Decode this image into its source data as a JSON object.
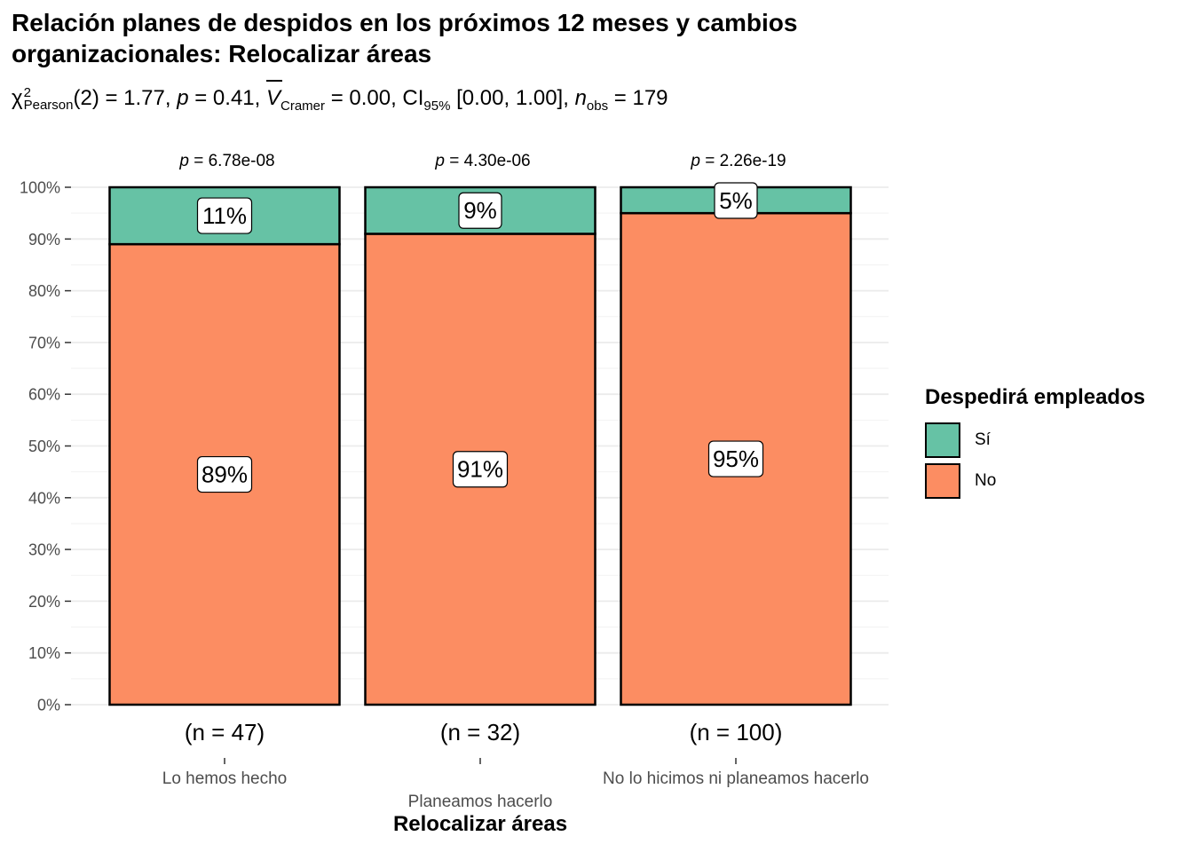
{
  "title": "Relación planes de despidos en los próximos 12 meses y cambios organizacionales: Relocalizar áreas",
  "subtitle": {
    "chi": "χ",
    "chi_sup": "2",
    "chi_sub": "Pearson",
    "df": "(2) = 1.77,",
    "p_label": "p",
    "p_value": "= 0.41,",
    "v_label": "V",
    "v_sub": "Cramer",
    "v_value": "= 0.00, CI",
    "ci_sub": "95%",
    "ci_value": "[0.00, 1.00],",
    "n_label": "n",
    "n_sub": "obs",
    "n_value": "= 179"
  },
  "legend": {
    "title": "Despedirá empleados",
    "items": [
      {
        "label": "Sí",
        "color": "#66C2A5"
      },
      {
        "label": "No",
        "color": "#FC8D62"
      }
    ]
  },
  "chart_data": {
    "type": "bar",
    "stacked": true,
    "percent": true,
    "categories": [
      "Lo hemos hecho",
      "Planeamos hacerlo",
      "No lo hicimos ni planeamos hacerlo"
    ],
    "series": [
      {
        "name": "No",
        "values": [
          89,
          91,
          95
        ],
        "color": "#FC8D62"
      },
      {
        "name": "Sí",
        "values": [
          11,
          9,
          5
        ],
        "color": "#66C2A5"
      }
    ],
    "data_labels": {
      "No": [
        "89%",
        "91%",
        "95%"
      ],
      "Sí": [
        "11%",
        "9%",
        "5%"
      ]
    },
    "n_labels": [
      "(n = 47)",
      "(n = 32)",
      "(n = 100)"
    ],
    "p_labels": [
      {
        "p": "p",
        "value": "= 6.78e-08"
      },
      {
        "p": "p",
        "value": "= 4.30e-06"
      },
      {
        "p": "p",
        "value": "= 2.26e-19"
      }
    ],
    "xlabel": "Relocalizar áreas",
    "ylabel": "",
    "ylim": [
      0,
      100
    ],
    "yticks": [
      "0%",
      "10%",
      "20%",
      "30%",
      "40%",
      "50%",
      "60%",
      "70%",
      "80%",
      "90%",
      "100%"
    ],
    "grid": true,
    "legend_position": "right"
  }
}
